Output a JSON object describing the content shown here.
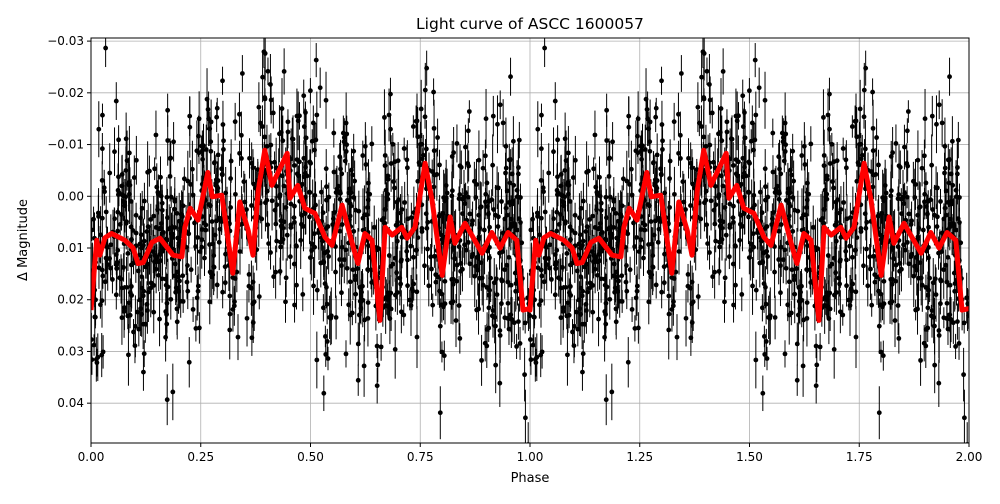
{
  "chart_data": {
    "type": "scatter",
    "title": "Light curve of ASCC 1600057",
    "xlabel": "Phase",
    "ylabel": "Δ Magnitude",
    "xlim": [
      0,
      2
    ],
    "ylim": [
      0.0477,
      -0.0306
    ],
    "y_inverted": true,
    "grid": true,
    "x_ticks": [
      "0.00",
      "0.25",
      "0.50",
      "0.75",
      "1.00",
      "1.25",
      "1.50",
      "1.75",
      "2.00"
    ],
    "x_tick_values": [
      0,
      0.25,
      0.5,
      0.75,
      1,
      1.25,
      1.5,
      1.75,
      2
    ],
    "y_ticks": [
      "−0.03",
      "−0.02",
      "−0.01",
      "0.00",
      "0.01",
      "0.02",
      "0.03",
      "0.04"
    ],
    "y_tick_values": [
      -0.03,
      -0.02,
      -0.01,
      0,
      0.01,
      0.02,
      0.03,
      0.04
    ],
    "colors": {
      "points": "#000000",
      "model": "#ff0000",
      "grid": "#b0b0b0"
    },
    "observations": {
      "description_shown": "black points with vertical error bars, phase-folded and repeated over two cycles",
      "scatter_std": 0.011,
      "typical_error": 0.004
    },
    "model_curve": {
      "period_repeat": 1,
      "phase": [
        0,
        0.013,
        0.02,
        0.032,
        0.047,
        0.077,
        0.096,
        0.107,
        0.119,
        0.139,
        0.157,
        0.187,
        0.207,
        0.214,
        0.226,
        0.244,
        0.266,
        0.276,
        0.298,
        0.305,
        0.323,
        0.339,
        0.358,
        0.369,
        0.381,
        0.396,
        0.412,
        0.447,
        0.453,
        0.471,
        0.487,
        0.51,
        0.533,
        0.549,
        0.572,
        0.595,
        0.608,
        0.624,
        0.64,
        0.658,
        0.67,
        0.686,
        0.708,
        0.72,
        0.738,
        0.761,
        0.777,
        0.8,
        0.818,
        0.829,
        0.852,
        0.891,
        0.913,
        0.932,
        0.95,
        0.97,
        0.984,
        1.0
      ],
      "magnitude": [
        0.022,
        0.0085,
        0.0114,
        0.008,
        0.0072,
        0.0085,
        0.01,
        0.013,
        0.0128,
        0.0089,
        0.0081,
        0.0114,
        0.0117,
        0.006,
        0.0023,
        0.0046,
        -0.0046,
        0.0001,
        -0.0002,
        0.004,
        0.0149,
        0.0011,
        0.0066,
        0.0114,
        -0.0012,
        -0.0089,
        -0.0021,
        -0.0083,
        0.0004,
        -0.0021,
        0.0023,
        0.0033,
        0.0079,
        0.0095,
        0.0017,
        0.0091,
        0.013,
        0.0072,
        0.0085,
        0.024,
        0.006,
        0.0075,
        0.006,
        0.0081,
        0.006,
        -0.0064,
        0.0008,
        0.0153,
        0.004,
        0.0091,
        0.0052,
        0.011,
        0.007,
        0.01,
        0.007,
        0.0085,
        0.022,
        0.0217
      ]
    }
  }
}
